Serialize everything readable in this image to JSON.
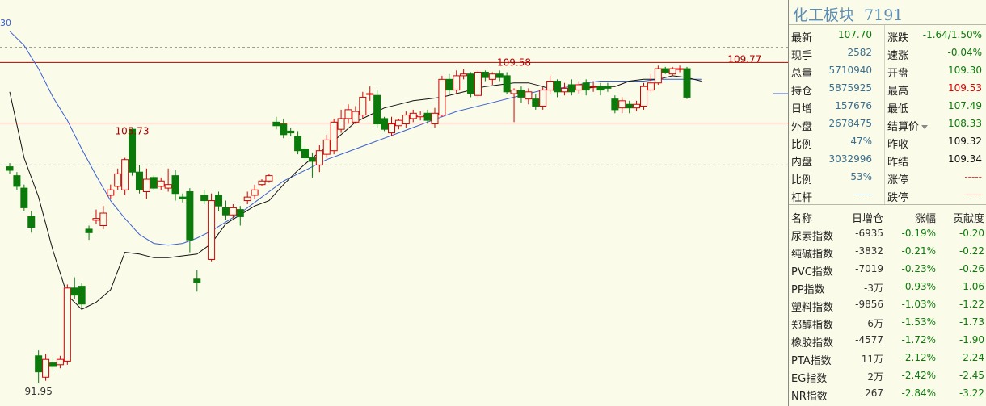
{
  "chart_data": {
    "type": "candlestick",
    "y_axis_top_label": "30",
    "ylim": [
      91.0,
      112.5
    ],
    "hlines": [
      109.95,
      106.55
    ],
    "dashed_levels": [
      110.8,
      104.2
    ],
    "annotations": [
      {
        "label": "105.73",
        "value": 105.73,
        "index": 17
      },
      {
        "label": "109.58",
        "value": 109.58,
        "index": 70
      },
      {
        "label": "109.77",
        "value": 109.77,
        "index": 102
      },
      {
        "label": "91.95",
        "value": 91.95,
        "index": 4
      }
    ],
    "candles": [
      {
        "o": 104.1,
        "c": 103.9,
        "h": 104.3,
        "l": 103.7
      },
      {
        "o": 103.6,
        "c": 103.0,
        "h": 103.8,
        "l": 102.8
      },
      {
        "o": 102.9,
        "c": 101.8,
        "h": 103.1,
        "l": 101.6
      },
      {
        "o": 101.3,
        "c": 100.7,
        "h": 101.6,
        "l": 100.4
      },
      {
        "o": 93.5,
        "c": 92.6,
        "h": 93.8,
        "l": 91.95
      },
      {
        "o": 92.3,
        "c": 93.3,
        "h": 93.6,
        "l": 92.1
      },
      {
        "o": 93.1,
        "c": 92.9,
        "h": 93.4,
        "l": 92.7
      },
      {
        "o": 93.0,
        "c": 93.3,
        "h": 93.5,
        "l": 92.8
      },
      {
        "o": 93.2,
        "c": 97.3,
        "h": 97.5,
        "l": 93.0
      },
      {
        "o": 97.3,
        "c": 96.9,
        "h": 97.9,
        "l": 96.7
      },
      {
        "o": 97.4,
        "c": 96.4,
        "h": 97.6,
        "l": 96.2
      },
      {
        "o": 100.6,
        "c": 100.4,
        "h": 100.8,
        "l": 100.0
      },
      {
        "o": 101.1,
        "c": 101.2,
        "h": 101.7,
        "l": 100.9
      },
      {
        "o": 100.8,
        "c": 101.5,
        "h": 101.9,
        "l": 100.6
      },
      {
        "o": 102.5,
        "c": 102.8,
        "h": 103.1,
        "l": 102.3
      },
      {
        "o": 103.0,
        "c": 103.7,
        "h": 104.0,
        "l": 102.8
      },
      {
        "o": 102.8,
        "c": 104.5,
        "h": 104.6,
        "l": 102.5
      },
      {
        "o": 106.2,
        "c": 103.8,
        "h": 106.3,
        "l": 103.6
      },
      {
        "o": 103.8,
        "c": 102.8,
        "h": 104.2,
        "l": 102.6
      },
      {
        "o": 102.7,
        "c": 103.4,
        "h": 104.0,
        "l": 102.3
      },
      {
        "o": 103.5,
        "c": 102.9,
        "h": 103.6,
        "l": 102.8
      },
      {
        "o": 103.0,
        "c": 103.3,
        "h": 103.5,
        "l": 102.8
      },
      {
        "o": 102.9,
        "c": 103.1,
        "h": 104.0,
        "l": 102.7
      },
      {
        "o": 103.6,
        "c": 102.6,
        "h": 103.9,
        "l": 102.2
      },
      {
        "o": 102.4,
        "c": 102.3,
        "h": 102.6,
        "l": 102.1
      },
      {
        "o": 102.7,
        "c": 100.0,
        "h": 102.9,
        "l": 99.3
      },
      {
        "o": 97.8,
        "c": 97.6,
        "h": 98.3,
        "l": 97.1
      },
      {
        "o": 102.5,
        "c": 102.2,
        "h": 102.8,
        "l": 102.0
      },
      {
        "o": 98.9,
        "c": 102.2,
        "h": 102.6,
        "l": 98.8
      },
      {
        "o": 102.5,
        "c": 101.9,
        "h": 102.7,
        "l": 101.6
      },
      {
        "o": 101.8,
        "c": 101.4,
        "h": 102.2,
        "l": 101.1
      },
      {
        "o": 101.4,
        "c": 101.8,
        "h": 102.0,
        "l": 101.2
      },
      {
        "o": 101.7,
        "c": 101.3,
        "h": 101.9,
        "l": 100.8
      },
      {
        "o": 102.2,
        "c": 102.4,
        "h": 102.7,
        "l": 102.0
      },
      {
        "o": 102.5,
        "c": 102.8,
        "h": 103.1,
        "l": 102.3
      },
      {
        "o": 103.1,
        "c": 103.3,
        "h": 103.4,
        "l": 103.0
      },
      {
        "o": 103.3,
        "c": 103.6,
        "h": 103.7,
        "l": 103.2
      },
      {
        "o": 106.6,
        "c": 106.4,
        "h": 106.9,
        "l": 106.2
      },
      {
        "o": 106.5,
        "c": 105.9,
        "h": 106.8,
        "l": 105.7
      },
      {
        "o": 106.1,
        "c": 106.0,
        "h": 106.3,
        "l": 105.8
      },
      {
        "o": 105.8,
        "c": 105.0,
        "h": 106.1,
        "l": 104.8
      },
      {
        "o": 105.1,
        "c": 104.6,
        "h": 105.3,
        "l": 104.4
      },
      {
        "o": 104.6,
        "c": 104.4,
        "h": 104.9,
        "l": 103.5
      },
      {
        "o": 104.2,
        "c": 105.0,
        "h": 105.3,
        "l": 103.8
      },
      {
        "o": 104.8,
        "c": 105.6,
        "h": 105.9,
        "l": 104.6
      },
      {
        "o": 105.0,
        "c": 106.6,
        "h": 106.8,
        "l": 104.8
      },
      {
        "o": 106.2,
        "c": 106.8,
        "h": 107.3,
        "l": 106.0
      },
      {
        "o": 106.8,
        "c": 107.3,
        "h": 107.6,
        "l": 106.5
      },
      {
        "o": 106.6,
        "c": 107.2,
        "h": 107.5,
        "l": 106.5
      },
      {
        "o": 107.0,
        "c": 108.0,
        "h": 108.3,
        "l": 106.8
      },
      {
        "o": 108.2,
        "c": 108.2,
        "h": 108.6,
        "l": 107.8
      },
      {
        "o": 108.1,
        "c": 106.5,
        "h": 108.4,
        "l": 106.3
      },
      {
        "o": 106.8,
        "c": 106.2,
        "h": 106.9,
        "l": 106.1
      },
      {
        "o": 106.0,
        "c": 106.5,
        "h": 106.9,
        "l": 105.8
      },
      {
        "o": 106.4,
        "c": 106.7,
        "h": 106.8,
        "l": 106.2
      },
      {
        "o": 106.5,
        "c": 107.0,
        "h": 107.2,
        "l": 106.3
      },
      {
        "o": 106.8,
        "c": 107.1,
        "h": 107.3,
        "l": 106.6
      },
      {
        "o": 106.9,
        "c": 107.0,
        "h": 107.2,
        "l": 106.7
      },
      {
        "o": 107.1,
        "c": 106.7,
        "h": 107.3,
        "l": 106.5
      },
      {
        "o": 106.5,
        "c": 107.1,
        "h": 107.4,
        "l": 106.3
      },
      {
        "o": 107.0,
        "c": 109.0,
        "h": 109.2,
        "l": 106.9
      },
      {
        "o": 109.0,
        "c": 108.4,
        "h": 109.3,
        "l": 108.2
      },
      {
        "o": 108.4,
        "c": 109.2,
        "h": 109.5,
        "l": 108.2
      },
      {
        "o": 109.2,
        "c": 109.3,
        "h": 109.58,
        "l": 109.0
      },
      {
        "o": 109.3,
        "c": 108.2,
        "h": 109.4,
        "l": 108.0
      },
      {
        "o": 108.1,
        "c": 109.4,
        "h": 109.5,
        "l": 108.0
      },
      {
        "o": 109.4,
        "c": 109.1,
        "h": 109.5,
        "l": 108.9
      },
      {
        "o": 109.0,
        "c": 109.3,
        "h": 109.4,
        "l": 108.7
      },
      {
        "o": 109.3,
        "c": 109.1,
        "h": 109.5,
        "l": 108.9
      },
      {
        "o": 109.2,
        "c": 108.3,
        "h": 109.4,
        "l": 108.2
      },
      {
        "o": 108.2,
        "c": 108.4,
        "h": 108.5,
        "l": 106.6
      },
      {
        "o": 108.4,
        "c": 108.0,
        "h": 108.6,
        "l": 107.7
      },
      {
        "o": 107.9,
        "c": 108.3,
        "h": 108.5,
        "l": 107.6
      },
      {
        "o": 107.9,
        "c": 107.5,
        "h": 108.2,
        "l": 107.3
      },
      {
        "o": 107.5,
        "c": 108.4,
        "h": 108.6,
        "l": 107.3
      },
      {
        "o": 108.4,
        "c": 108.9,
        "h": 109.2,
        "l": 108.2
      },
      {
        "o": 108.9,
        "c": 108.3,
        "h": 109.0,
        "l": 108.0
      },
      {
        "o": 108.3,
        "c": 108.5,
        "h": 108.8,
        "l": 108.1
      },
      {
        "o": 108.7,
        "c": 108.3,
        "h": 109.0,
        "l": 108.1
      },
      {
        "o": 108.4,
        "c": 108.7,
        "h": 108.9,
        "l": 108.2
      },
      {
        "o": 108.8,
        "c": 108.4,
        "h": 109.0,
        "l": 108.1
      },
      {
        "o": 108.6,
        "c": 108.6,
        "h": 108.9,
        "l": 108.3
      },
      {
        "o": 108.6,
        "c": 108.4,
        "h": 108.8,
        "l": 108.1
      },
      {
        "o": 108.6,
        "c": 108.5,
        "h": 108.8,
        "l": 108.3
      },
      {
        "o": 107.9,
        "c": 107.3,
        "h": 108.1,
        "l": 107.1
      },
      {
        "o": 107.4,
        "c": 107.8,
        "h": 108.0,
        "l": 107.1
      },
      {
        "o": 107.6,
        "c": 107.4,
        "h": 107.8,
        "l": 107.1
      },
      {
        "o": 107.4,
        "c": 107.6,
        "h": 107.8,
        "l": 107.2
      },
      {
        "o": 107.5,
        "c": 108.6,
        "h": 108.8,
        "l": 107.3
      },
      {
        "o": 108.4,
        "c": 108.8,
        "h": 109.3,
        "l": 108.3
      },
      {
        "o": 108.8,
        "c": 109.6,
        "h": 109.77,
        "l": 108.7
      },
      {
        "o": 109.6,
        "c": 109.4,
        "h": 109.7,
        "l": 109.3
      },
      {
        "o": 109.3,
        "c": 109.6,
        "h": 109.7,
        "l": 109.2
      },
      {
        "o": 109.6,
        "c": 109.6,
        "h": 109.77,
        "l": 109.4
      },
      {
        "o": 109.6,
        "c": 108.0,
        "h": 109.7,
        "l": 107.9
      }
    ],
    "ma_short": [
      [
        0,
        108.3
      ],
      [
        4,
        104.6
      ],
      [
        8,
        102.4
      ],
      [
        12,
        99.4
      ],
      [
        16,
        96.9
      ],
      [
        20,
        96.1
      ],
      [
        24,
        96.5
      ],
      [
        28,
        97.2
      ],
      [
        32,
        99.3
      ],
      [
        36,
        99.2
      ],
      [
        40,
        99.0
      ],
      [
        44,
        99.0
      ],
      [
        48,
        99.1
      ],
      [
        52,
        99.2
      ],
      [
        56,
        99.8
      ],
      [
        60,
        100.9
      ],
      [
        64,
        101.4
      ],
      [
        68,
        101.9
      ],
      [
        72,
        102.2
      ],
      [
        76,
        103.1
      ],
      [
        80,
        103.9
      ],
      [
        84,
        104.6
      ],
      [
        88,
        105.2
      ],
      [
        92,
        105.9
      ],
      [
        96,
        106.6
      ],
      [
        100,
        107.0
      ],
      [
        104,
        107.4
      ],
      [
        108,
        107.6
      ],
      [
        112,
        107.8
      ],
      [
        116,
        107.9
      ],
      [
        120,
        108.0
      ],
      [
        124,
        108.2
      ],
      [
        128,
        108.4
      ],
      [
        132,
        108.6
      ],
      [
        136,
        108.7
      ],
      [
        140,
        108.8
      ],
      [
        144,
        108.8
      ],
      [
        148,
        108.6
      ],
      [
        152,
        108.3
      ],
      [
        156,
        108.4
      ],
      [
        160,
        108.5
      ],
      [
        164,
        108.6
      ],
      [
        168,
        108.6
      ],
      [
        172,
        108.9
      ],
      [
        176,
        109.0
      ],
      [
        180,
        109.0
      ],
      [
        184,
        109.2
      ],
      [
        188,
        109.1
      ],
      [
        192,
        108.9
      ]
    ],
    "ma_long": [
      [
        0,
        111.7
      ],
      [
        4,
        110.9
      ],
      [
        8,
        109.6
      ],
      [
        12,
        108.0
      ],
      [
        16,
        106.7
      ],
      [
        20,
        105.1
      ],
      [
        24,
        103.6
      ],
      [
        28,
        102.2
      ],
      [
        32,
        101.2
      ],
      [
        36,
        100.3
      ],
      [
        40,
        99.8
      ],
      [
        44,
        99.7
      ],
      [
        48,
        99.8
      ],
      [
        52,
        100.1
      ],
      [
        56,
        100.5
      ],
      [
        60,
        101.0
      ],
      [
        64,
        101.5
      ],
      [
        68,
        102.1
      ],
      [
        72,
        102.7
      ],
      [
        76,
        103.3
      ],
      [
        80,
        103.7
      ],
      [
        84,
        104.1
      ],
      [
        88,
        104.5
      ],
      [
        92,
        104.8
      ],
      [
        96,
        105.1
      ],
      [
        100,
        105.4
      ],
      [
        104,
        105.7
      ],
      [
        108,
        106.0
      ],
      [
        112,
        106.3
      ],
      [
        116,
        106.6
      ],
      [
        120,
        106.9
      ],
      [
        124,
        107.2
      ],
      [
        128,
        107.4
      ],
      [
        132,
        107.6
      ],
      [
        136,
        107.8
      ],
      [
        140,
        108.0
      ],
      [
        144,
        108.2
      ],
      [
        148,
        108.4
      ],
      [
        152,
        108.5
      ],
      [
        156,
        108.6
      ],
      [
        160,
        108.8
      ],
      [
        164,
        108.9
      ],
      [
        168,
        108.9
      ],
      [
        172,
        108.9
      ],
      [
        176,
        108.9
      ],
      [
        180,
        109.0
      ],
      [
        184,
        109.0
      ],
      [
        188,
        109.0
      ],
      [
        192,
        109.0
      ]
    ],
    "grid": false
  },
  "panel": {
    "title": "化工板块",
    "code": "7191",
    "quote_rows": [
      {
        "l1": "最新",
        "v1": "107.70",
        "c1": "green",
        "l2": "涨跌",
        "v2": "-1.64/1.50%",
        "c2": "green"
      },
      {
        "l1": "现手",
        "v1": "2582",
        "c1": "blue",
        "l2": "速涨",
        "v2": "-0.04%",
        "c2": "green"
      },
      {
        "l1": "总量",
        "v1": "5710940",
        "c1": "blue",
        "l2": "开盘",
        "v2": "109.30",
        "c2": "green"
      },
      {
        "l1": "持仓",
        "v1": "5875925",
        "c1": "blue",
        "l2": "最高",
        "v2": "109.53",
        "c2": "red"
      },
      {
        "l1": "日增",
        "v1": "157676",
        "c1": "blue",
        "l2": "最低",
        "v2": "107.49",
        "c2": "green"
      },
      {
        "l1": "外盘",
        "v1": "2678475",
        "c1": "blue",
        "l2": "结算价",
        "v2": "108.33",
        "c2": "green"
      },
      {
        "l1": "比例",
        "v1": "47%",
        "c1": "blue",
        "l2": "昨收",
        "v2": "109.32",
        "c2": "black"
      },
      {
        "l1": "内盘",
        "v1": "3032996",
        "c1": "blue",
        "l2": "昨结",
        "v2": "109.34",
        "c2": "black"
      },
      {
        "l1": "比例",
        "v1": "53%",
        "c1": "blue",
        "l2": "涨停",
        "v2": "-----",
        "c2": "dash"
      },
      {
        "l1": "杠杆",
        "v1": "-----",
        "c1": "blue",
        "l2": "跌停",
        "v2": "-----",
        "c2": "dash"
      }
    ],
    "list_header": {
      "name": "名称",
      "a": "日增仓",
      "b": "涨幅",
      "c": "贡献度"
    },
    "list_rows": [
      {
        "name": "尿素指数",
        "a": "-6935",
        "b": "-0.19%",
        "c": "-0.20"
      },
      {
        "name": "纯碱指数",
        "a": "-3832",
        "b": "-0.21%",
        "c": "-0.22"
      },
      {
        "name": "PVC指数",
        "a": "-7019",
        "b": "-0.23%",
        "c": "-0.26"
      },
      {
        "name": "PP指数",
        "a": "-3万",
        "b": "-0.93%",
        "c": "-1.06"
      },
      {
        "name": "塑料指数",
        "a": "-9856",
        "b": "-1.03%",
        "c": "-1.22"
      },
      {
        "name": "郑醇指数",
        "a": "6万",
        "b": "-1.53%",
        "c": "-1.73"
      },
      {
        "name": "橡胶指数",
        "a": "-4577",
        "b": "-1.72%",
        "c": "-1.90"
      },
      {
        "name": "PTA指数",
        "a": "11万",
        "b": "-2.12%",
        "c": "-2.24"
      },
      {
        "name": "EG指数",
        "a": "2万",
        "b": "-2.42%",
        "c": "-2.45"
      },
      {
        "name": "NR指数",
        "a": "267",
        "b": "-2.84%",
        "c": "-3.22"
      }
    ],
    "colors": {
      "up": "#d00000",
      "down": "#0b7a0b",
      "blue": "#3a6f8f",
      "ma_short": "#111111",
      "ma_long": "#3a5fd0",
      "hline": "#b00000"
    }
  }
}
